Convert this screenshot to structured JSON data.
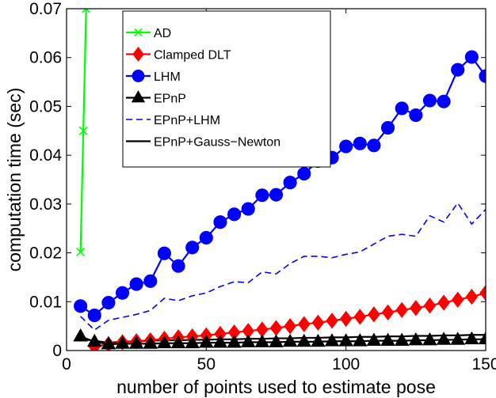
{
  "chart_data": {
    "type": "line",
    "xlabel": "number of points used to estimate pose",
    "ylabel": "computation time (sec)",
    "xlim": [
      0,
      150
    ],
    "ylim": [
      0,
      0.07
    ],
    "xticks": [
      0,
      50,
      100,
      150
    ],
    "xtick_labels": [
      "0",
      "50",
      "100",
      "150"
    ],
    "yticks": [
      0,
      0.01,
      0.02,
      0.03,
      0.04,
      0.05,
      0.06,
      0.07
    ],
    "ytick_labels": [
      "0",
      "0.01",
      "0.02",
      "0.03",
      "0.04",
      "0.05",
      "0.06",
      "0.07"
    ],
    "grid": false,
    "legend_position": "top-left",
    "series": [
      {
        "name": "AD",
        "color": "#00ff00",
        "marker": "x",
        "dash": "solid",
        "x": [
          5,
          6,
          7
        ],
        "y": [
          0.0202,
          0.045,
          0.07
        ]
      },
      {
        "name": "Clamped DLT",
        "color": "#ff0000",
        "marker": "diamond",
        "dash": "solid",
        "x": [
          10,
          15,
          20,
          25,
          30,
          35,
          40,
          45,
          50,
          55,
          60,
          65,
          70,
          75,
          80,
          85,
          90,
          95,
          100,
          105,
          110,
          115,
          120,
          125,
          130,
          135,
          140,
          145,
          150
        ],
        "y": [
          0.0008,
          0.0013,
          0.0017,
          0.0019,
          0.0021,
          0.0024,
          0.0027,
          0.0029,
          0.0031,
          0.0034,
          0.0037,
          0.004,
          0.0043,
          0.0046,
          0.005,
          0.0054,
          0.0057,
          0.0061,
          0.0065,
          0.0069,
          0.0074,
          0.0078,
          0.0083,
          0.0087,
          0.0092,
          0.0098,
          0.0104,
          0.011,
          0.0118
        ]
      },
      {
        "name": "LHM",
        "color": "#0000ff",
        "marker": "circle",
        "dash": "solid",
        "x": [
          5,
          10,
          15,
          20,
          25,
          30,
          35,
          40,
          45,
          50,
          55,
          60,
          65,
          70,
          75,
          80,
          85,
          90,
          95,
          100,
          105,
          110,
          115,
          120,
          125,
          130,
          135,
          140,
          145,
          150
        ],
        "y": [
          0.0091,
          0.0072,
          0.0098,
          0.0118,
          0.0136,
          0.0142,
          0.0199,
          0.0173,
          0.0211,
          0.0231,
          0.0263,
          0.0279,
          0.029,
          0.0318,
          0.0319,
          0.0344,
          0.0362,
          0.0388,
          0.0395,
          0.0418,
          0.0424,
          0.042,
          0.0456,
          0.0496,
          0.0482,
          0.0512,
          0.051,
          0.0575,
          0.0601,
          0.0562
        ]
      },
      {
        "name": "EPnP",
        "color": "#000000",
        "marker": "triangle",
        "dash": "solid",
        "x": [
          5,
          10,
          15,
          20,
          25,
          30,
          35,
          40,
          45,
          50,
          55,
          60,
          65,
          70,
          75,
          80,
          85,
          90,
          95,
          100,
          105,
          110,
          115,
          120,
          125,
          130,
          135,
          140,
          145,
          150
        ],
        "y": [
          0.0029,
          0.0018,
          0.0013,
          0.0014,
          0.0014,
          0.0014,
          0.0015,
          0.0015,
          0.0015,
          0.0016,
          0.0016,
          0.0016,
          0.0017,
          0.0017,
          0.0017,
          0.0018,
          0.0018,
          0.0018,
          0.0019,
          0.0019,
          0.0019,
          0.002,
          0.002,
          0.002,
          0.0021,
          0.0021,
          0.0022,
          0.0022,
          0.0023,
          0.0023
        ]
      },
      {
        "name": "EPnP+LHM",
        "color": "#0000ff",
        "marker": "none",
        "dash": "dashed",
        "x": [
          5,
          10,
          15,
          20,
          25,
          30,
          35,
          40,
          45,
          50,
          55,
          60,
          65,
          70,
          75,
          80,
          85,
          90,
          95,
          100,
          105,
          110,
          115,
          120,
          125,
          130,
          135,
          140,
          145,
          150
        ],
        "y": [
          0.007,
          0.0042,
          0.0062,
          0.0068,
          0.0074,
          0.0082,
          0.0107,
          0.0102,
          0.0112,
          0.0118,
          0.0131,
          0.0141,
          0.0139,
          0.0161,
          0.0157,
          0.0178,
          0.0193,
          0.0193,
          0.019,
          0.0197,
          0.0202,
          0.0218,
          0.0234,
          0.0238,
          0.0234,
          0.0276,
          0.0263,
          0.0302,
          0.0259,
          0.0289
        ]
      },
      {
        "name": "EPnP+Gauss−Newton",
        "color": "#000000",
        "marker": "none",
        "dash": "solid",
        "x": [
          5,
          10,
          15,
          20,
          25,
          30,
          35,
          40,
          45,
          50,
          55,
          60,
          65,
          70,
          75,
          80,
          85,
          90,
          95,
          100,
          105,
          110,
          115,
          120,
          125,
          130,
          135,
          140,
          145,
          150
        ],
        "y": [
          0.0024,
          0.002,
          0.0016,
          0.0018,
          0.0019,
          0.002,
          0.0021,
          0.0021,
          0.0022,
          0.0022,
          0.0023,
          0.0023,
          0.0024,
          0.0024,
          0.0025,
          0.0025,
          0.0026,
          0.0026,
          0.0027,
          0.0027,
          0.0028,
          0.0028,
          0.0029,
          0.0029,
          0.003,
          0.003,
          0.0031,
          0.0031,
          0.0032,
          0.0032
        ]
      }
    ]
  }
}
